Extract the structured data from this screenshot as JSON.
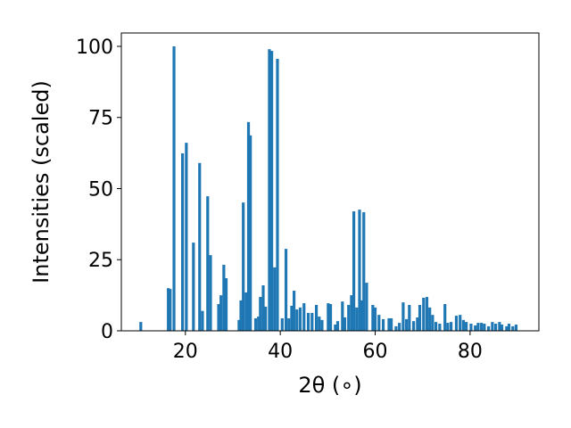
{
  "chart_data": {
    "type": "bar",
    "xlabel": "2θ (∘)",
    "ylabel": "Intensities (scaled)",
    "color": "#1f77b4",
    "x": [
      10.6,
      16.4,
      16.8,
      17.6,
      19.4,
      20.2,
      21.7,
      23.0,
      23.6,
      24.7,
      25.3,
      27.0,
      27.5,
      28.1,
      28.6,
      31.3,
      31.7,
      32.2,
      32.8,
      33.3,
      33.7,
      34.8,
      35.4,
      35.8,
      36.4,
      36.9,
      37.7,
      38.2,
      38.8,
      39.4,
      40.4,
      41.2,
      41.8,
      42.4,
      42.9,
      43.5,
      44.2,
      45.0,
      45.9,
      46.7,
      47.6,
      48.2,
      48.8,
      50.1,
      50.6,
      51.6,
      52.1,
      53.1,
      53.6,
      54.4,
      55.0,
      55.5,
      56.1,
      56.7,
      57.2,
      57.6,
      58.2,
      59.5,
      60.0,
      60.8,
      61.7,
      62.9,
      63.4,
      64.4,
      65.1,
      65.9,
      66.6,
      67.2,
      68.1,
      68.9,
      69.4,
      70.2,
      70.9,
      71.5,
      72.1,
      72.8,
      73.6,
      74.7,
      75.3,
      76.0,
      77.1,
      77.9,
      78.6,
      79.2,
      80.2,
      81.1,
      81.7,
      82.4,
      83.0,
      83.9,
      84.7,
      85.4,
      86.2,
      86.7,
      87.7,
      88.2,
      89.0,
      89.7
    ],
    "values": [
      3.1,
      15,
      14.7,
      100,
      62.4,
      66.1,
      31,
      59,
      7,
      47.3,
      26.6,
      9.4,
      12.5,
      23.2,
      18.5,
      3.8,
      10.7,
      45.1,
      13.5,
      73.4,
      68.7,
      4.4,
      5,
      11.9,
      16,
      8.5,
      99,
      98.4,
      22.3,
      95.6,
      4.4,
      28.8,
      4.4,
      8.8,
      14.1,
      7.5,
      8.2,
      9.7,
      6.3,
      6.3,
      9.1,
      5,
      3.8,
      9.7,
      9.4,
      2.2,
      3.4,
      10.3,
      4.7,
      9.1,
      12.5,
      42,
      8.2,
      42.6,
      10.7,
      41.7,
      16.9,
      9.1,
      8.2,
      5.6,
      4.1,
      4.4,
      4.4,
      1.6,
      2.8,
      10,
      4.1,
      9.1,
      3.4,
      4.7,
      9.1,
      11.6,
      11.9,
      8.2,
      5.6,
      3.1,
      2.5,
      9.4,
      2.8,
      3.1,
      5.3,
      5.6,
      3.8,
      3.1,
      2.5,
      1.9,
      2.8,
      2.8,
      2.5,
      1.6,
      3.1,
      2.5,
      3.1,
      2.2,
      1.6,
      2.5,
      1.6,
      2.2
    ],
    "xlim": [
      6.5,
      94.5
    ],
    "xticks": [
      20,
      40,
      60,
      80
    ],
    "ylim": [
      0,
      104.7
    ],
    "yticks": [
      0,
      25,
      50,
      75,
      100
    ]
  }
}
